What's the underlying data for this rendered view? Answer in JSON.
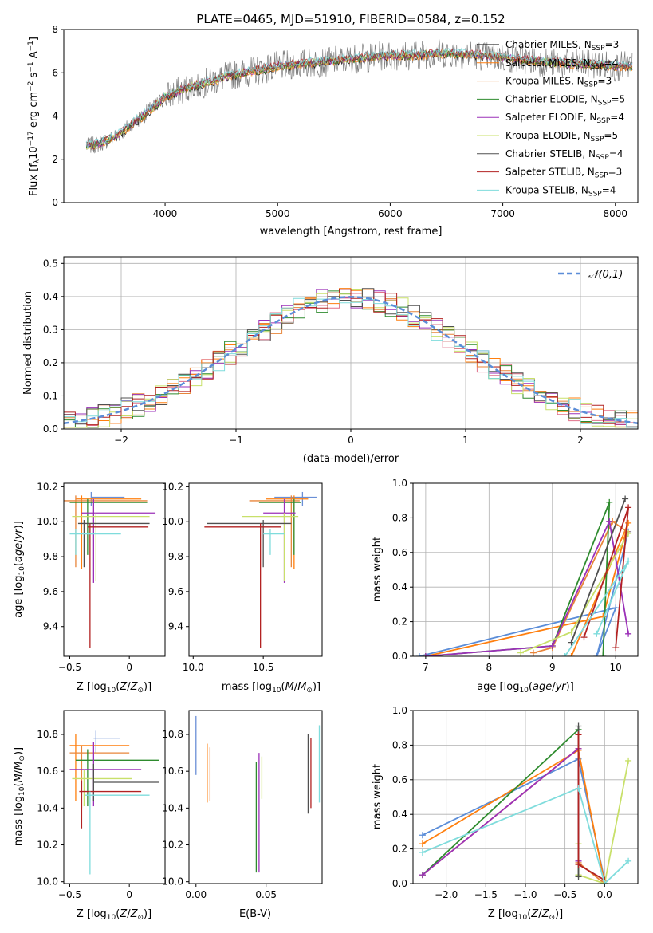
{
  "figure_title": "PLATE=0465, MJD=51910, FIBERID=0584, z=0.152",
  "colors": {
    "data": "#808080",
    "models": [
      "#000000",
      "#ff7f0e",
      "#e8853a",
      "#2e8b2e",
      "#9b30b8",
      "#c8e06a",
      "#505050",
      "#b22222",
      "#7fdcdc"
    ]
  },
  "chart_data": [
    {
      "id": "spectrum",
      "type": "line",
      "title": "PLATE=0465, MJD=51910, FIBERID=0584, z=0.152",
      "xlabel": "wavelength [Angstrom, rest frame]",
      "ylabel": "Flux [f_λ 10^-17 erg cm^-2 s^-1 A^-1]",
      "xlim": [
        3100,
        8200
      ],
      "ylim": [
        0,
        8
      ],
      "xticks": [
        4000,
        5000,
        6000,
        7000,
        8000
      ],
      "yticks": [
        0,
        2,
        4,
        6,
        8
      ],
      "continuum": {
        "x": [
          3300,
          3400,
          3500,
          3600,
          3700,
          3800,
          3900,
          4000,
          4200,
          4400,
          4600,
          4800,
          5000,
          5200,
          5400,
          5600,
          5800,
          6000,
          6200,
          6400,
          6600,
          6800,
          7000,
          7200,
          7400,
          7600,
          7800,
          8000
        ],
        "y": [
          2.6,
          2.7,
          2.9,
          3.2,
          3.6,
          4.0,
          4.4,
          4.9,
          5.3,
          5.6,
          5.9,
          6.1,
          6.3,
          6.4,
          6.5,
          6.6,
          6.7,
          6.8,
          6.8,
          6.9,
          6.9,
          6.8,
          6.7,
          6.6,
          6.5,
          6.4,
          6.4,
          6.3
        ]
      },
      "legend": [
        "Chabrier MILES, N_SSP=3",
        "Salpeter MILES, N_SSP=4",
        "Kroupa MILES, N_SSP=3",
        "Chabrier ELODIE, N_SSP=5",
        "Salpeter ELODIE, N_SSP=4",
        "Kroupa ELODIE, N_SSP=5",
        "Chabrier STELIB, N_SSP=4",
        "Salpeter STELIB, N_SSP=3",
        "Kroupa STELIB, N_SSP=4"
      ],
      "legend_placement": "upper-right"
    },
    {
      "id": "residuals",
      "type": "histogram",
      "xlabel": "(data-model)/error",
      "ylabel": "Normed distribution",
      "xlim": [
        -2.5,
        2.5
      ],
      "ylim": [
        0,
        0.52
      ],
      "xticks": [
        -2,
        -1,
        0,
        1,
        2
      ],
      "yticks": [
        0.0,
        0.1,
        0.2,
        0.3,
        0.4,
        0.5
      ],
      "grid": true,
      "legend": [
        "𝒩(0,1)"
      ],
      "legend_placement": "upper-right"
    },
    {
      "id": "age-vs-Z",
      "type": "errorbar",
      "xlabel": "Z [log10(Z/Z⊙)]",
      "ylabel": "age [log10(age/yr)]",
      "xlim": [
        -0.55,
        0.3
      ],
      "ylim": [
        9.23,
        10.22
      ],
      "xticks": [
        -0.5,
        0.0
      ],
      "yticks": [
        9.4,
        9.6,
        9.8,
        10.0,
        10.2
      ],
      "points": [
        {
          "x": -0.32,
          "y": 10.14,
          "xerr": [
            0.0,
            0.28
          ],
          "yerr": [
            0.05,
            0.03
          ]
        },
        {
          "x": -0.4,
          "y": 10.13,
          "xerr": [
            0.05,
            0.5
          ],
          "yerr": [
            0.4,
            0.02
          ]
        },
        {
          "x": -0.45,
          "y": 10.12,
          "xerr": [
            0.1,
            0.6
          ],
          "yerr": [
            0.38,
            0.03
          ]
        },
        {
          "x": -0.35,
          "y": 10.11,
          "xerr": [
            0.15,
            0.5
          ],
          "yerr": [
            0.3,
            0.02
          ]
        },
        {
          "x": -0.3,
          "y": 10.05,
          "xerr": [
            0.1,
            0.52
          ],
          "yerr": [
            0.4,
            0.08
          ]
        },
        {
          "x": -0.28,
          "y": 10.03,
          "xerr": [
            0.2,
            0.45
          ],
          "yerr": [
            0.37,
            0.02
          ]
        },
        {
          "x": -0.38,
          "y": 9.99,
          "xerr": [
            0.05,
            0.55
          ],
          "yerr": [
            0.25,
            0.02
          ]
        },
        {
          "x": -0.33,
          "y": 9.97,
          "xerr": [
            0.02,
            0.49
          ],
          "yerr": [
            0.69,
            0.02
          ]
        },
        {
          "x": -0.45,
          "y": 9.93,
          "xerr": [
            0.05,
            0.38
          ],
          "yerr": [
            0.12,
            0.03
          ]
        }
      ]
    },
    {
      "id": "age-vs-mass",
      "type": "errorbar",
      "xlabel": "mass [log10(M/M⊙)]",
      "xlim": [
        9.97,
        10.92
      ],
      "ylim": [
        9.23,
        10.22
      ],
      "xticks": [
        10.0,
        10.5
      ],
      "yticks": [
        9.4,
        9.6,
        9.8,
        10.0,
        10.2
      ],
      "points": [
        {
          "x": 10.78,
          "y": 10.14,
          "xerr": [
            0.2,
            0.1
          ],
          "yerr": [
            0.05,
            0.03
          ]
        },
        {
          "x": 10.72,
          "y": 10.13,
          "xerr": [
            0.2,
            0.1
          ],
          "yerr": [
            0.4,
            0.02
          ]
        },
        {
          "x": 10.7,
          "y": 10.12,
          "xerr": [
            0.3,
            0.06
          ],
          "yerr": [
            0.38,
            0.03
          ]
        },
        {
          "x": 10.72,
          "y": 10.11,
          "xerr": [
            0.25,
            0.05
          ],
          "yerr": [
            0.3,
            0.02
          ]
        },
        {
          "x": 10.65,
          "y": 10.05,
          "xerr": [
            0.15,
            0.08
          ],
          "yerr": [
            0.4,
            0.08
          ]
        },
        {
          "x": 10.65,
          "y": 10.03,
          "xerr": [
            0.3,
            0.1
          ],
          "yerr": [
            0.37,
            0.02
          ]
        },
        {
          "x": 10.5,
          "y": 9.99,
          "xerr": [
            0.4,
            0.2
          ],
          "yerr": [
            0.25,
            0.02
          ]
        },
        {
          "x": 10.48,
          "y": 9.97,
          "xerr": [
            0.4,
            0.15
          ],
          "yerr": [
            0.69,
            0.02
          ]
        },
        {
          "x": 10.55,
          "y": 9.93,
          "xerr": [
            0.05,
            0.1
          ],
          "yerr": [
            0.12,
            0.03
          ]
        }
      ]
    },
    {
      "id": "weight-vs-age",
      "type": "line",
      "xlabel": "age [log10(age/yr)]",
      "ylabel": "mass weight",
      "xlim": [
        6.8,
        10.35
      ],
      "ylim": [
        0,
        1.0
      ],
      "xticks": [
        7,
        8,
        9,
        10
      ],
      "yticks": [
        0.0,
        0.2,
        0.4,
        0.6,
        0.8,
        1.0
      ],
      "series": [
        {
          "x": [
            6.9,
            10.0,
            9.7,
            10.2
          ],
          "y": [
            0.0,
            0.28,
            0.0,
            0.72
          ]
        },
        {
          "x": [
            7.0,
            9.8,
            10.2,
            9.3
          ],
          "y": [
            0.0,
            0.23,
            0.77,
            0.0
          ]
        },
        {
          "x": [
            8.7,
            9.0,
            9.95,
            10.18
          ],
          "y": [
            0.02,
            0.05,
            0.78,
            0.72
          ]
        },
        {
          "x": [
            7.0,
            9.0,
            9.9,
            9.8
          ],
          "y": [
            0.0,
            0.06,
            0.89,
            0.0
          ]
        },
        {
          "x": [
            7.0,
            9.0,
            9.9,
            10.2
          ],
          "y": [
            0.0,
            0.06,
            0.78,
            0.13
          ]
        },
        {
          "x": [
            8.5,
            9.3,
            10.2
          ],
          "y": [
            0.02,
            0.14,
            0.71
          ]
        },
        {
          "x": [
            9.3,
            10.15
          ],
          "y": [
            0.08,
            0.91
          ]
        },
        {
          "x": [
            9.5,
            10.2,
            10.0
          ],
          "y": [
            0.11,
            0.86,
            0.05
          ]
        },
        {
          "x": [
            9.7,
            10.2,
            9.2
          ],
          "y": [
            0.13,
            0.55,
            0.0
          ]
        }
      ]
    },
    {
      "id": "mass-vs-Z",
      "type": "errorbar",
      "xlabel": "Z [log10(Z/Z⊙)]",
      "ylabel": "mass [log10(M/M⊙)]",
      "xlim": [
        -0.55,
        0.3
      ],
      "ylim": [
        9.99,
        10.93
      ],
      "xticks": [
        -0.5,
        0.0
      ],
      "yticks": [
        10.0,
        10.2,
        10.4,
        10.6,
        10.8
      ],
      "points": [
        {
          "x": -0.28,
          "y": 10.78,
          "xerr": [
            0.02,
            0.2
          ],
          "yerr": [
            0.08,
            0.04
          ]
        },
        {
          "x": -0.45,
          "y": 10.74,
          "xerr": [
            0.05,
            0.45
          ],
          "yerr": [
            0.3,
            0.06
          ]
        },
        {
          "x": -0.4,
          "y": 10.7,
          "xerr": [
            0.1,
            0.4
          ],
          "yerr": [
            0.3,
            0.04
          ]
        },
        {
          "x": -0.35,
          "y": 10.66,
          "xerr": [
            0.1,
            0.6
          ],
          "yerr": [
            0.25,
            0.06
          ]
        },
        {
          "x": -0.3,
          "y": 10.61,
          "xerr": [
            0.2,
            0.4
          ],
          "yerr": [
            0.2,
            0.15
          ]
        },
        {
          "x": -0.38,
          "y": 10.56,
          "xerr": [
            0.1,
            0.4
          ],
          "yerr": [
            0.15,
            0.05
          ]
        },
        {
          "x": -0.3,
          "y": 10.54,
          "xerr": [
            0.0,
            0.55
          ],
          "yerr": [
            0.1,
            0.1
          ]
        },
        {
          "x": -0.4,
          "y": 10.49,
          "xerr": [
            0.02,
            0.5
          ],
          "yerr": [
            0.2,
            0.06
          ]
        },
        {
          "x": -0.33,
          "y": 10.47,
          "xerr": [
            0.04,
            0.5
          ],
          "yerr": [
            0.43,
            0.02
          ]
        }
      ]
    },
    {
      "id": "mass-vs-ebv",
      "type": "errorbar",
      "xlabel": "E(B-V)",
      "xlim": [
        -0.005,
        0.09
      ],
      "ylim": [
        9.99,
        10.93
      ],
      "xticks": [
        0.0,
        0.05
      ],
      "yticks": [
        10.0,
        10.2,
        10.4,
        10.6,
        10.8
      ],
      "points": [
        {
          "x": 0.0,
          "y": 10.78,
          "yerr": [
            0.2,
            0.12
          ]
        },
        {
          "x": 0.008,
          "y": 10.6,
          "yerr": [
            0.17,
            0.15
          ]
        },
        {
          "x": 0.01,
          "y": 10.6,
          "yerr": [
            0.16,
            0.13
          ]
        },
        {
          "x": 0.043,
          "y": 10.55,
          "yerr": [
            0.5,
            0.1
          ]
        },
        {
          "x": 0.045,
          "y": 10.55,
          "yerr": [
            0.5,
            0.15
          ]
        },
        {
          "x": 0.047,
          "y": 10.6,
          "yerr": [
            0.15,
            0.08
          ]
        },
        {
          "x": 0.08,
          "y": 10.6,
          "yerr": [
            0.23,
            0.2
          ]
        },
        {
          "x": 0.082,
          "y": 10.6,
          "yerr": [
            0.2,
            0.18
          ]
        },
        {
          "x": 0.088,
          "y": 10.6,
          "yerr": [
            0.17,
            0.25
          ]
        }
      ]
    },
    {
      "id": "weight-vs-Z",
      "type": "line",
      "xlabel": "Z [log10(Z/Z⊙)]",
      "ylabel": "mass weight",
      "xlim": [
        -2.42,
        0.42
      ],
      "ylim": [
        0,
        1.0
      ],
      "xticks": [
        -2.0,
        -1.5,
        -1.0,
        -0.5,
        0.0
      ],
      "yticks": [
        0.0,
        0.2,
        0.4,
        0.6,
        0.8,
        1.0
      ],
      "series": [
        {
          "x": [
            -2.3,
            -0.33,
            0.0
          ],
          "y": [
            0.28,
            0.72,
            0.02
          ]
        },
        {
          "x": [
            -2.3,
            -0.33,
            0.0
          ],
          "y": [
            0.23,
            0.77,
            0.0
          ]
        },
        {
          "x": [
            -2.3,
            -0.33,
            -0.33,
            0.0
          ],
          "y": [
            0.05,
            0.78,
            0.12,
            0.0
          ]
        },
        {
          "x": [
            -2.3,
            -0.33,
            -0.33
          ],
          "y": [
            0.05,
            0.89,
            0.05
          ]
        },
        {
          "x": [
            -2.3,
            -0.33,
            -0.33
          ],
          "y": [
            0.05,
            0.78,
            0.13
          ]
        },
        {
          "x": [
            -0.33,
            -0.33,
            0.0,
            0.3
          ],
          "y": [
            0.23,
            0.05,
            0.0,
            0.71
          ]
        },
        {
          "x": [
            -0.33,
            -0.33
          ],
          "y": [
            0.91,
            0.04
          ]
        },
        {
          "x": [
            -0.33,
            -0.33,
            0.0
          ],
          "y": [
            0.86,
            0.11,
            0.02
          ]
        },
        {
          "x": [
            -2.3,
            -0.33,
            0.0,
            0.3
          ],
          "y": [
            0.18,
            0.55,
            0.0,
            0.13
          ]
        }
      ]
    }
  ]
}
